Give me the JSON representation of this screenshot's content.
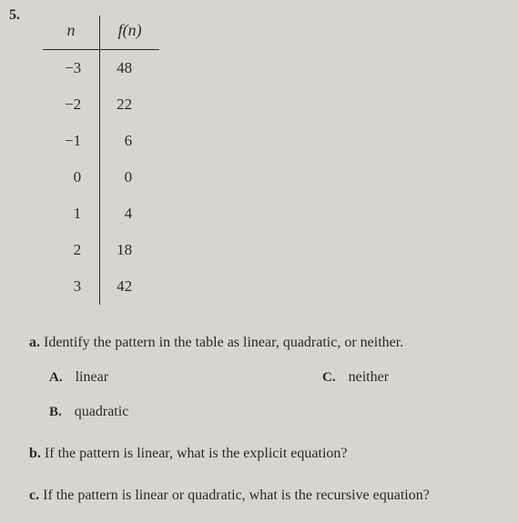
{
  "question_number": "5.",
  "table": {
    "header_n": "n",
    "header_fn_f": "f",
    "header_fn_n": "n",
    "rows": [
      {
        "n": "−3",
        "fn": "48"
      },
      {
        "n": "−2",
        "fn": "22"
      },
      {
        "n": "−1",
        "fn": "6"
      },
      {
        "n": "0",
        "fn": "0"
      },
      {
        "n": "1",
        "fn": "4"
      },
      {
        "n": "2",
        "fn": "18"
      },
      {
        "n": "3",
        "fn": "42"
      }
    ]
  },
  "questions": {
    "a": {
      "label": "a.",
      "text": "Identify the pattern in the table as linear, quadratic, or neither.",
      "options": {
        "A": {
          "label": "A.",
          "text": "linear"
        },
        "B": {
          "label": "B.",
          "text": "quadratic"
        },
        "C": {
          "label": "C.",
          "text": "neither"
        }
      }
    },
    "b": {
      "label": "b.",
      "text": "If the pattern is linear, what is the explicit equation?"
    },
    "c": {
      "label": "c.",
      "text": "If the pattern is linear or quadratic, what is the recursive equation?"
    }
  }
}
